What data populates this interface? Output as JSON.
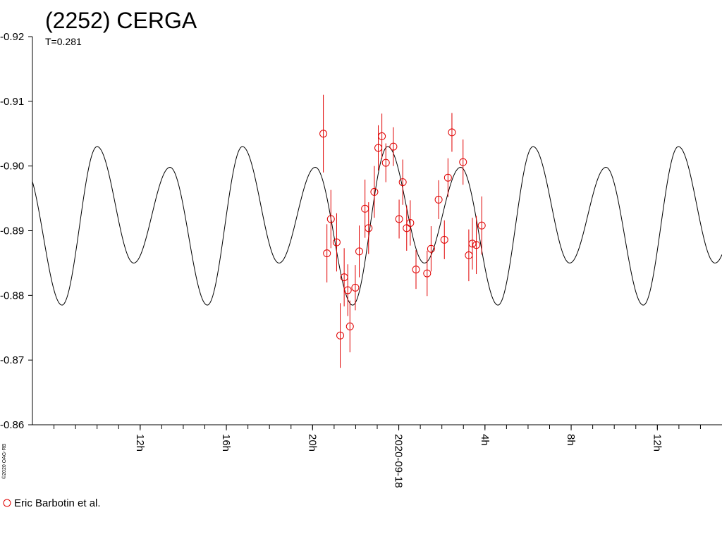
{
  "chart_data": {
    "type": "scatter",
    "title": "(2252) CERGA",
    "subtitle": "T=0.281",
    "credit": "©2020 OAG-RB",
    "ylim": [
      -0.92,
      -0.86
    ],
    "yticks": [
      {
        "value": -0.92,
        "label": "-0.92"
      },
      {
        "value": -0.91,
        "label": "-0.91"
      },
      {
        "value": -0.9,
        "label": "-0.90"
      },
      {
        "value": -0.89,
        "label": "-0.89"
      },
      {
        "value": -0.88,
        "label": "-0.88"
      },
      {
        "value": -0.87,
        "label": "-0.87"
      },
      {
        "value": -0.86,
        "label": "-0.86"
      }
    ],
    "xlim": [
      "2020-09-17T07:00",
      "2020-09-18T15:00"
    ],
    "xtick_minor_hours": 1,
    "xtick_major": [
      {
        "time": "2020-09-17T12:00",
        "label": "12h"
      },
      {
        "time": "2020-09-17T16:00",
        "label": "16h"
      },
      {
        "time": "2020-09-17T20:00",
        "label": "20h"
      },
      {
        "time": "2020-09-18T00:00",
        "label": "2020-09-18"
      },
      {
        "time": "2020-09-18T04:00",
        "label": "4h"
      },
      {
        "time": "2020-09-18T08:00",
        "label": "8h"
      },
      {
        "time": "2020-09-18T12:00",
        "label": "12h"
      }
    ],
    "grid": false,
    "legend": {
      "position": "bottom-left",
      "entries": [
        {
          "name": "Eric Barbotin et al.",
          "marker": "open-circle",
          "color": "#e00000"
        }
      ]
    },
    "model_curve": {
      "color": "#000000",
      "period_hours": 6.744,
      "mean": -0.8915,
      "peaks": [
        {
          "time": "2020-09-17T10:00",
          "value": -0.903
        },
        {
          "time": "2020-09-17T13:23",
          "value": -0.8998
        }
      ],
      "troughs": [
        {
          "time": "2020-09-17T11:42",
          "value": -0.885
        },
        {
          "time": "2020-09-17T15:07",
          "value": -0.8785
        }
      ]
    },
    "series": [
      {
        "name": "Eric Barbotin et al.",
        "color": "#e00000",
        "marker": "open-circle",
        "points": [
          {
            "t": "2020-09-17T20:30",
            "y": -0.905,
            "err": 0.006
          },
          {
            "t": "2020-09-17T20:40",
            "y": -0.8865,
            "err": 0.0045
          },
          {
            "t": "2020-09-17T20:51",
            "y": -0.8918,
            "err": 0.0045
          },
          {
            "t": "2020-09-17T21:07",
            "y": -0.8882,
            "err": 0.0045
          },
          {
            "t": "2020-09-17T21:17",
            "y": -0.8738,
            "err": 0.005
          },
          {
            "t": "2020-09-17T21:28",
            "y": -0.8828,
            "err": 0.0045
          },
          {
            "t": "2020-09-17T21:38",
            "y": -0.8808,
            "err": 0.004
          },
          {
            "t": "2020-09-17T21:44",
            "y": -0.8752,
            "err": 0.004
          },
          {
            "t": "2020-09-17T21:59",
            "y": -0.8812,
            "err": 0.0035
          },
          {
            "t": "2020-09-17T22:10",
            "y": -0.8868,
            "err": 0.004
          },
          {
            "t": "2020-09-17T22:26",
            "y": -0.8934,
            "err": 0.0045
          },
          {
            "t": "2020-09-17T22:36",
            "y": -0.8904,
            "err": 0.004
          },
          {
            "t": "2020-09-17T22:52",
            "y": -0.896,
            "err": 0.004
          },
          {
            "t": "2020-09-17T23:03",
            "y": -0.9028,
            "err": 0.0035
          },
          {
            "t": "2020-09-17T23:13",
            "y": -0.9046,
            "err": 0.0035
          },
          {
            "t": "2020-09-17T23:24",
            "y": -0.9005,
            "err": 0.003
          },
          {
            "t": "2020-09-17T23:45",
            "y": -0.903,
            "err": 0.003
          },
          {
            "t": "2020-09-18T00:01",
            "y": -0.8918,
            "err": 0.003
          },
          {
            "t": "2020-09-18T00:11",
            "y": -0.8975,
            "err": 0.0035
          },
          {
            "t": "2020-09-18T00:22",
            "y": -0.8904,
            "err": 0.0035
          },
          {
            "t": "2020-09-18T00:32",
            "y": -0.8912,
            "err": 0.0035
          },
          {
            "t": "2020-09-18T00:48",
            "y": -0.884,
            "err": 0.003
          },
          {
            "t": "2020-09-18T01:19",
            "y": -0.8834,
            "err": 0.0035
          },
          {
            "t": "2020-09-18T01:30",
            "y": -0.8872,
            "err": 0.0035
          },
          {
            "t": "2020-09-18T01:51",
            "y": -0.8948,
            "err": 0.003
          },
          {
            "t": "2020-09-18T02:07",
            "y": -0.8886,
            "err": 0.003
          },
          {
            "t": "2020-09-18T02:17",
            "y": -0.8982,
            "err": 0.003
          },
          {
            "t": "2020-09-18T02:28",
            "y": -0.9052,
            "err": 0.003
          },
          {
            "t": "2020-09-18T02:59",
            "y": -0.9006,
            "err": 0.0035
          },
          {
            "t": "2020-09-18T03:15",
            "y": -0.8862,
            "err": 0.004
          },
          {
            "t": "2020-09-18T03:25",
            "y": -0.888,
            "err": 0.004
          },
          {
            "t": "2020-09-18T03:36",
            "y": -0.8878,
            "err": 0.0045
          },
          {
            "t": "2020-09-18T03:51",
            "y": -0.8908,
            "err": 0.0045
          }
        ]
      }
    ]
  }
}
